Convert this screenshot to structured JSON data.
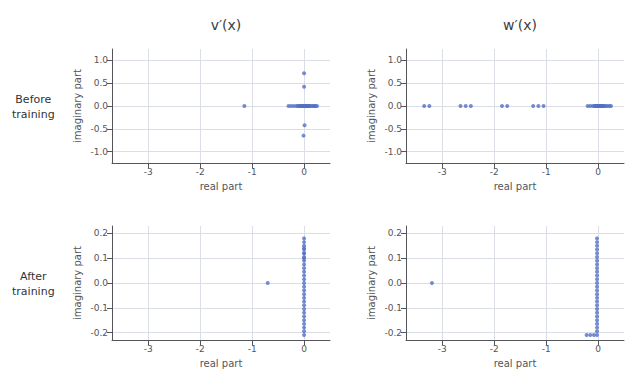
{
  "chart_data": [
    {
      "type": "scatter",
      "title": "v′(x)",
      "annotations": [
        "Before\ntraining"
      ],
      "xlabel": "real part",
      "ylabel": "imaginary part",
      "xlim": [
        -3.7,
        0.5
      ],
      "ylim": [
        -1.25,
        1.25
      ],
      "xticks": [
        -3,
        -2,
        -1,
        0
      ],
      "yticks": [
        {
          "value": -1.0,
          "label": "-1.0"
        },
        -0.5,
        {
          "value": 0.0,
          "label": "0.0"
        },
        0.5,
        {
          "value": 1.0,
          "label": "1.0"
        }
      ],
      "grid": true,
      "x": [
        -1.15,
        -0.3,
        -0.25,
        -0.2,
        -0.15,
        -0.12,
        -0.1,
        -0.08,
        -0.06,
        -0.05,
        -0.04,
        -0.03,
        -0.02,
        -0.01,
        0.0,
        0.01,
        0.02,
        0.03,
        0.04,
        0.05,
        0.06,
        0.07,
        0.08,
        0.09,
        0.1,
        0.12,
        0.15,
        0.18,
        0.2,
        0.22,
        0.25,
        0.0,
        0.0,
        0.01,
        -0.01
      ],
      "values": [
        0.0,
        0.0,
        0.0,
        0.0,
        0.0,
        0.0,
        0.0,
        0.0,
        0.0,
        0.0,
        0.0,
        0.0,
        0.0,
        0.0,
        0.0,
        0.0,
        0.0,
        0.0,
        0.0,
        0.0,
        0.0,
        0.0,
        0.0,
        0.0,
        0.0,
        0.0,
        0.0,
        0.0,
        0.0,
        0.0,
        0.0,
        0.72,
        0.42,
        -0.42,
        -0.65
      ]
    },
    {
      "type": "scatter",
      "title": "w′(x)",
      "xlabel": "real part",
      "ylabel": "imaginary part",
      "xlim": [
        -3.7,
        0.5
      ],
      "ylim": [
        -1.25,
        1.25
      ],
      "xticks": [
        -3,
        -2,
        -1,
        0
      ],
      "yticks": [
        {
          "value": -1.0,
          "label": "-1.0"
        },
        -0.5,
        {
          "value": 0.0,
          "label": "0.0"
        },
        0.5,
        {
          "value": 1.0,
          "label": "1.0"
        }
      ],
      "grid": true,
      "x": [
        -3.35,
        -3.25,
        -2.65,
        -2.55,
        -2.45,
        -1.85,
        -1.75,
        -1.25,
        -1.15,
        -1.05,
        -0.2,
        -0.15,
        -0.1,
        -0.07,
        -0.05,
        -0.04,
        -0.03,
        -0.02,
        -0.01,
        0.0,
        0.01,
        0.02,
        0.03,
        0.04,
        0.05,
        0.06,
        0.07,
        0.08,
        0.09,
        0.1,
        0.12,
        0.15,
        0.18,
        0.22,
        0.25
      ],
      "values": [
        0.0,
        0.0,
        0.0,
        0.0,
        0.0,
        0.0,
        0.0,
        0.0,
        0.0,
        0.0,
        0.0,
        0.0,
        0.0,
        0.0,
        0.0,
        0.0,
        0.0,
        0.0,
        0.0,
        0.0,
        0.0,
        0.0,
        0.0,
        0.0,
        0.0,
        0.0,
        0.0,
        0.0,
        0.0,
        0.0,
        0.0,
        0.0,
        0.0,
        0.0,
        0.0
      ]
    },
    {
      "type": "scatter",
      "annotations": [
        "After\ntraining"
      ],
      "xlabel": "real part",
      "ylabel": "imaginary part",
      "xlim": [
        -3.7,
        0.5
      ],
      "ylim": [
        -0.23,
        0.23
      ],
      "xticks": [
        -3,
        -2,
        -1,
        0
      ],
      "yticks": [
        -0.2,
        -0.1,
        {
          "value": 0.0,
          "label": "0.0"
        },
        0.1,
        0.2
      ],
      "grid": true,
      "x": [
        -0.7,
        0.0,
        0.0,
        0.0,
        0.0,
        0.0,
        0.0,
        0.0,
        0.0,
        0.0,
        0.0,
        0.0,
        0.0,
        0.0,
        0.0,
        0.0,
        0.0,
        0.0,
        0.0,
        0.0,
        0.0,
        0.0,
        0.0,
        0.0,
        0.0,
        0.0,
        0.0,
        0.0,
        0.0,
        0.0,
        0.0
      ],
      "values": [
        0.0,
        0.18,
        0.165,
        0.15,
        0.135,
        0.12,
        0.105,
        0.09,
        0.075,
        0.06,
        0.045,
        0.03,
        0.015,
        0.0,
        -0.015,
        -0.03,
        -0.045,
        -0.06,
        -0.075,
        -0.09,
        -0.105,
        -0.12,
        -0.135,
        -0.15,
        -0.165,
        -0.18,
        -0.195,
        -0.21,
        0.1,
        0.12,
        0.14
      ]
    },
    {
      "type": "scatter",
      "xlabel": "real part",
      "ylabel": "imaginary part",
      "xlim": [
        -3.7,
        0.5
      ],
      "ylim": [
        -0.23,
        0.23
      ],
      "xticks": [
        -3,
        -2,
        -1,
        0
      ],
      "yticks": [
        -0.2,
        -0.1,
        {
          "value": 0.0,
          "label": "0.0"
        },
        0.1,
        0.2
      ],
      "grid": true,
      "x": [
        -3.2,
        -0.02,
        -0.02,
        -0.02,
        -0.02,
        -0.02,
        -0.02,
        -0.02,
        -0.02,
        -0.02,
        -0.02,
        -0.02,
        -0.02,
        -0.02,
        -0.02,
        -0.02,
        -0.02,
        -0.02,
        -0.02,
        -0.02,
        -0.02,
        -0.02,
        -0.02,
        -0.02,
        -0.02,
        -0.02,
        -0.02,
        -0.02,
        -0.08,
        -0.15,
        -0.22
      ],
      "values": [
        0.0,
        0.18,
        0.165,
        0.15,
        0.135,
        0.12,
        0.105,
        0.09,
        0.075,
        0.06,
        0.045,
        0.03,
        0.015,
        0.0,
        -0.015,
        -0.03,
        -0.045,
        -0.06,
        -0.075,
        -0.09,
        -0.105,
        -0.12,
        -0.135,
        -0.15,
        -0.165,
        -0.18,
        -0.195,
        -0.21,
        -0.21,
        -0.21,
        -0.21
      ]
    }
  ]
}
